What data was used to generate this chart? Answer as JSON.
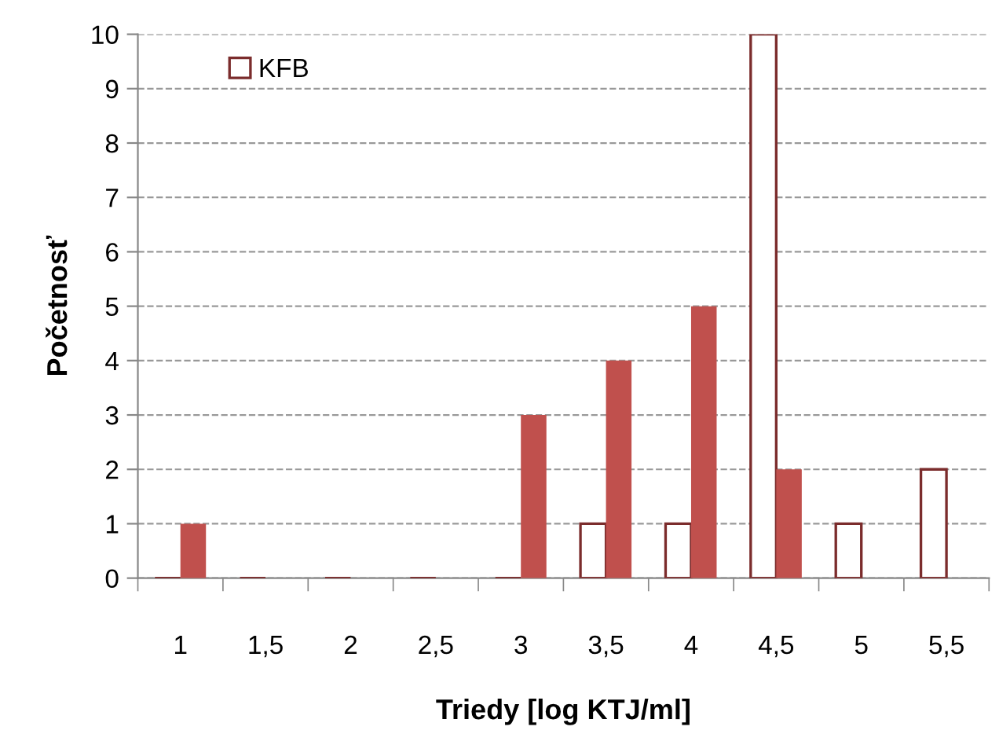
{
  "chart_data": {
    "type": "bar",
    "xlabel": "Triedy [log KTJ/ml]",
    "ylabel": "Početnosť",
    "categories": [
      "1",
      "1,5",
      "2",
      "2,5",
      "3",
      "3,5",
      "4",
      "4,5",
      "5",
      "5,5"
    ],
    "series": [
      {
        "name": "KFB",
        "color": "#7b2c2c",
        "values": [
          0,
          0,
          0,
          0,
          0,
          1,
          1,
          10,
          1,
          2
        ]
      },
      {
        "color": "#c0504d",
        "values": [
          1,
          0,
          0,
          0,
          3,
          4,
          5,
          2,
          0,
          0
        ]
      }
    ],
    "ylim": [
      0,
      10
    ],
    "yticks": [
      0,
      1,
      2,
      3,
      4,
      5,
      6,
      7,
      8,
      9,
      10
    ],
    "grid": "y",
    "legend": "top left"
  }
}
